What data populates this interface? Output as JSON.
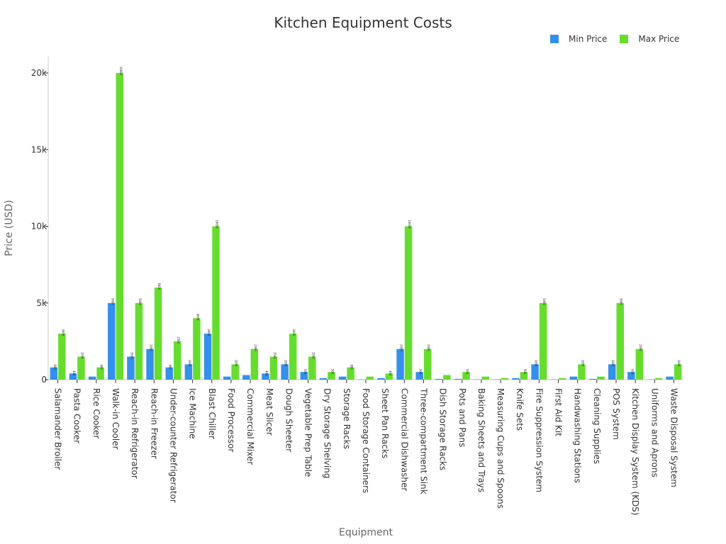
{
  "chart_data": {
    "type": "bar",
    "title": "Kitchen Equipment Costs",
    "xlabel": "Equipment",
    "ylabel": "Price (USD)",
    "ylim": [
      0,
      21000
    ],
    "yticks": [
      0,
      5000,
      10000,
      15000,
      20000
    ],
    "ytick_labels": [
      "0",
      "5k",
      "10k",
      "15k",
      "20k"
    ],
    "legend_position": "top-right",
    "grid": false,
    "categories": [
      "Salamander Broiler",
      "Pasta Cooker",
      "Rice Cooker",
      "Walk-in Cooler",
      "Reach-in Refrigerator",
      "Reach-in Freezer",
      "Under-counter Refrigerator",
      "Ice Machine",
      "Blast Chiller",
      "Food Processor",
      "Commercial Mixer",
      "Meat Slicer",
      "Dough Sheeter",
      "Vegetable Prep Table",
      "Dry Storage Shelving",
      "Storage Racks",
      "Food Storage Containers",
      "Sheet Pan Racks",
      "Commercial Dishwasher",
      "Three-compartment Sink",
      "Dish Storage Racks",
      "Pots and Pans",
      "Baking Sheets and Trays",
      "Measuring Cups and Spoons",
      "Knife Sets",
      "Fire Suppression System",
      "First Aid Kit",
      "Handwashing Stations",
      "Cleaning Supplies",
      "POS System",
      "Kitchen Display System (KDS)",
      "Uniforms and Aprons",
      "Waste Disposal System"
    ],
    "series": [
      {
        "name": "Min Price",
        "color": "#3490eb",
        "values": [
          800,
          400,
          200,
          5000,
          1500,
          2000,
          800,
          1000,
          3000,
          200,
          300,
          400,
          1000,
          500,
          100,
          200,
          20,
          100,
          2000,
          500,
          50,
          50,
          20,
          20,
          100,
          1000,
          20,
          200,
          50,
          1000,
          500,
          20,
          200
        ]
      },
      {
        "name": "Max Price",
        "color": "#66dd2e",
        "values": [
          3000,
          1500,
          800,
          20000,
          5000,
          6000,
          2500,
          4000,
          10000,
          1000,
          2000,
          1500,
          3000,
          1500,
          500,
          800,
          200,
          400,
          10000,
          2000,
          300,
          500,
          200,
          100,
          500,
          5000,
          100,
          1000,
          200,
          5000,
          2000,
          100,
          1000
        ]
      }
    ]
  }
}
